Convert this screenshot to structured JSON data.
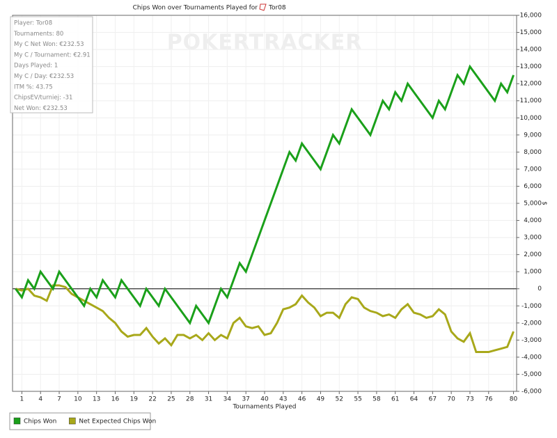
{
  "chart_data": {
    "type": "line",
    "title": "Chips Won over Tournaments Played for",
    "player": "Tor08",
    "watermark": "POKERTRACKER",
    "x_label": "Tournaments Played",
    "y_label": "$",
    "info_box": [
      "Player: Tor08",
      "Tournaments: 80",
      "My C Net Won: €232.53",
      "My C / Tournament: €2.91",
      "Days Played: 1",
      "My C / Day: €232.53",
      "ITM %: 43.75",
      "ChipsEV/turniej: -31",
      "Net Won: €232.53"
    ],
    "x": [
      0,
      1,
      2,
      3,
      4,
      5,
      6,
      7,
      8,
      9,
      10,
      11,
      12,
      13,
      14,
      15,
      16,
      17,
      18,
      19,
      20,
      21,
      22,
      23,
      24,
      25,
      26,
      27,
      28,
      29,
      30,
      31,
      32,
      33,
      34,
      35,
      36,
      37,
      38,
      39,
      40,
      41,
      42,
      43,
      44,
      45,
      46,
      47,
      48,
      49,
      50,
      51,
      52,
      53,
      54,
      55,
      56,
      57,
      58,
      59,
      60,
      61,
      62,
      63,
      64,
      65,
      66,
      67,
      68,
      69,
      70,
      71,
      72,
      73,
      74,
      75,
      76,
      77,
      78,
      79,
      80
    ],
    "series": [
      {
        "name": "Chips Won",
        "color": "#1aa01a",
        "values": [
          0,
          -500,
          500,
          0,
          1000,
          500,
          0,
          1000,
          500,
          0,
          -500,
          -1000,
          0,
          -500,
          500,
          0,
          -500,
          500,
          0,
          -500,
          -1000,
          0,
          -500,
          -1000,
          0,
          -500,
          -1000,
          -1500,
          -2000,
          -1000,
          -1500,
          -2000,
          -1000,
          0,
          -500,
          500,
          1500,
          1000,
          2000,
          3000,
          4000,
          5000,
          6000,
          7000,
          8000,
          7500,
          8500,
          8000,
          7500,
          7000,
          8000,
          9000,
          8500,
          9500,
          10500,
          10000,
          9500,
          9000,
          10000,
          11000,
          10500,
          11500,
          11000,
          12000,
          11500,
          11000,
          10500,
          10000,
          11000,
          10500,
          11500,
          12500,
          12000,
          13000,
          12500,
          12000,
          11500,
          11000,
          12000,
          11500,
          12500
        ]
      },
      {
        "name": "Net Expected Chips Won",
        "color": "#a8a81a",
        "values": [
          0,
          -100,
          0,
          -400,
          -500,
          -700,
          200,
          200,
          100,
          -300,
          -500,
          -700,
          -900,
          -1100,
          -1300,
          -1700,
          -2000,
          -2500,
          -2800,
          -2700,
          -2700,
          -2300,
          -2800,
          -3200,
          -2900,
          -3300,
          -2700,
          -2700,
          -2900,
          -2700,
          -3000,
          -2600,
          -3000,
          -2700,
          -2900,
          -2000,
          -1700,
          -2200,
          -2300,
          -2200,
          -2700,
          -2600,
          -2000,
          -1200,
          -1100,
          -900,
          -400,
          -800,
          -1100,
          -1600,
          -1400,
          -1400,
          -1700,
          -900,
          -500,
          -600,
          -1100,
          -1300,
          -1400,
          -1600,
          -1500,
          -1700,
          -1200,
          -900,
          -1400,
          -1500,
          -1700,
          -1600,
          -1200,
          -1500,
          -2500,
          -2900,
          -3100,
          -2600,
          -3700,
          -3700,
          -3700,
          -3600,
          -3500,
          -3400,
          -2500
        ]
      }
    ],
    "xlim": [
      -0.5,
      80.5
    ],
    "xticks": [
      1,
      4,
      7,
      10,
      13,
      16,
      19,
      22,
      25,
      28,
      31,
      34,
      37,
      40,
      43,
      46,
      49,
      52,
      55,
      58,
      61,
      64,
      67,
      70,
      73,
      76,
      80
    ],
    "ylim": [
      -6000,
      16000
    ],
    "yticks": [
      {
        "value": -6000,
        "label": "-6,000"
      },
      {
        "value": -5000,
        "label": "-5,000"
      },
      {
        "value": -4000,
        "label": "-4,000"
      },
      {
        "value": -3000,
        "label": "-3,000"
      },
      {
        "value": -2000,
        "label": "-2,000"
      },
      {
        "value": -1000,
        "label": "-1,000"
      },
      0,
      {
        "value": 1000,
        "label": "1,000"
      },
      {
        "value": 2000,
        "label": "2,000"
      },
      {
        "value": 3000,
        "label": "3,000"
      },
      {
        "value": 4000,
        "label": "4,000"
      },
      {
        "value": 5000,
        "label": "5,000"
      },
      {
        "value": 6000,
        "label": "6,000"
      },
      {
        "value": 7000,
        "label": "7,000"
      },
      {
        "value": 8000,
        "label": "8,000"
      },
      {
        "value": 9000,
        "label": "9,000"
      },
      {
        "value": 10000,
        "label": "10,000"
      },
      {
        "value": 11000,
        "label": "11,000"
      },
      {
        "value": 12000,
        "label": "12,000"
      },
      {
        "value": 13000,
        "label": "13,000"
      },
      {
        "value": 14000,
        "label": "14,000"
      },
      {
        "value": 15000,
        "label": "15,000"
      },
      {
        "value": 16000,
        "label": "16,000"
      }
    ],
    "grid": true,
    "legend": "bottom-left"
  }
}
